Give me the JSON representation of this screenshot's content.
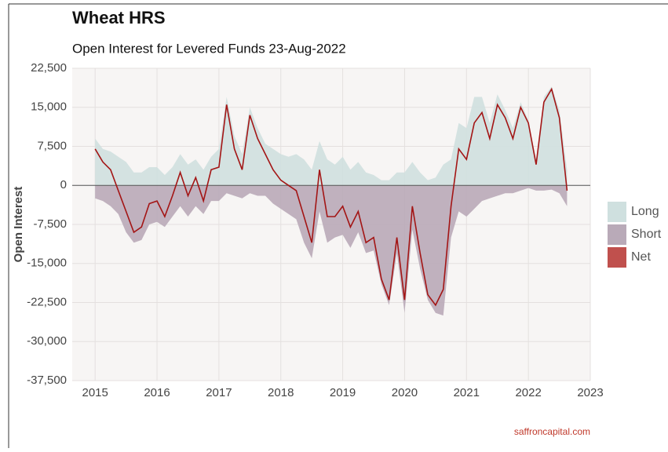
{
  "chart_data": {
    "type": "area",
    "title": "Wheat HRS",
    "subtitle": "Open Interest for Levered Funds 23-Aug-2022",
    "y_label": "Open Interest",
    "source": "saffroncapital.com",
    "x": [
      2015.0,
      2015.125,
      2015.25,
      2015.375,
      2015.5,
      2015.625,
      2015.75,
      2015.875,
      2016.0,
      2016.125,
      2016.25,
      2016.375,
      2016.5,
      2016.625,
      2016.75,
      2016.875,
      2017.0,
      2017.125,
      2017.25,
      2017.375,
      2017.5,
      2017.625,
      2017.75,
      2017.875,
      2018.0,
      2018.125,
      2018.25,
      2018.375,
      2018.5,
      2018.625,
      2018.75,
      2018.875,
      2019.0,
      2019.125,
      2019.25,
      2019.375,
      2019.5,
      2019.625,
      2019.75,
      2019.875,
      2020.0,
      2020.125,
      2020.25,
      2020.375,
      2020.5,
      2020.625,
      2020.75,
      2020.875,
      2021.0,
      2021.125,
      2021.25,
      2021.375,
      2021.5,
      2021.625,
      2021.75,
      2021.875,
      2022.0,
      2022.125,
      2022.25,
      2022.375,
      2022.5,
      2022.625
    ],
    "series": [
      {
        "name": "Long",
        "color": "#cfe0df",
        "values": [
          9000,
          7000,
          6500,
          5500,
          4500,
          2500,
          2500,
          3500,
          3500,
          2000,
          3500,
          6000,
          4000,
          5000,
          3000,
          5500,
          7000,
          17000,
          9500,
          6000,
          15000,
          11000,
          8000,
          7000,
          6000,
          5500,
          6000,
          5000,
          3000,
          8500,
          5000,
          4000,
          5500,
          3000,
          4500,
          2500,
          2000,
          1000,
          1000,
          2500,
          2500,
          4500,
          2500,
          1000,
          1500,
          4000,
          5000,
          12000,
          11000,
          17000,
          17000,
          12000,
          17500,
          14500,
          11000,
          16000,
          12500,
          5000,
          17000,
          19000,
          14500,
          3000
        ]
      },
      {
        "name": "Short",
        "color": "#b9aab8",
        "values": [
          -2500,
          -3000,
          -4000,
          -5500,
          -9000,
          -11000,
          -10500,
          -7500,
          -7000,
          -8000,
          -6000,
          -4000,
          -6000,
          -4000,
          -5500,
          -3000,
          -3000,
          -1500,
          -2000,
          -2500,
          -1500,
          -2000,
          -2000,
          -3500,
          -4500,
          -5500,
          -6500,
          -11000,
          -14000,
          -5000,
          -11000,
          -10000,
          -9500,
          -12000,
          -9000,
          -13000,
          -12500,
          -19000,
          -23000,
          -13000,
          -24500,
          -8500,
          -16000,
          -22000,
          -24500,
          -25000,
          -10000,
          -5000,
          -6000,
          -4500,
          -3000,
          -2500,
          -2000,
          -1500,
          -1500,
          -1000,
          -500,
          -1000,
          -1000,
          -800,
          -1500,
          -4000
        ]
      },
      {
        "name": "Net",
        "color": "#a31515",
        "values": [
          7000,
          4500,
          3000,
          -1000,
          -5000,
          -9000,
          -8000,
          -3500,
          -3000,
          -6000,
          -2000,
          2500,
          -2000,
          1500,
          -3000,
          3000,
          3500,
          15500,
          7000,
          3000,
          13500,
          9000,
          6000,
          3000,
          1000,
          0,
          -1000,
          -6000,
          -11000,
          3000,
          -6000,
          -6000,
          -4000,
          -8000,
          -5000,
          -11000,
          -10000,
          -18000,
          -22000,
          -10000,
          -22000,
          -4000,
          -13000,
          -21000,
          -23000,
          -20000,
          -4000,
          7000,
          5000,
          12000,
          14000,
          9000,
          15500,
          13000,
          9000,
          15000,
          12000,
          4000,
          16000,
          18500,
          13000,
          -1000
        ]
      }
    ],
    "legend_color_net": "#c0504d",
    "xlim": [
      2014.63,
      2023
    ],
    "xticks": [
      2015,
      2016,
      2017,
      2018,
      2019,
      2020,
      2021,
      2022,
      2023
    ],
    "ylim": [
      -37500,
      22500
    ],
    "yticks": [
      {
        "value": -37500,
        "label": "-37,500"
      },
      {
        "value": -30000,
        "label": "-30,000"
      },
      {
        "value": -22500,
        "label": "-22,500"
      },
      {
        "value": -15000,
        "label": "-15,000"
      },
      {
        "value": -7500,
        "label": "-7,500"
      },
      0,
      {
        "value": 7500,
        "label": "7,500"
      },
      {
        "value": 15000,
        "label": "15,000"
      },
      {
        "value": 22500,
        "label": "22,500"
      }
    ],
    "grid": true
  }
}
